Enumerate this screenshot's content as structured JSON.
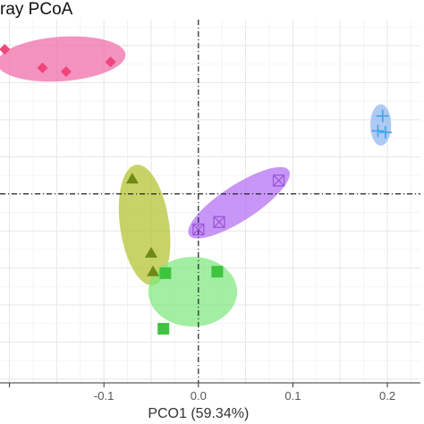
{
  "chart_data": {
    "type": "scatter",
    "title": "ray PCoA",
    "xlabel": "PCO1 (59.34%)",
    "ylabel": "",
    "xlim": [
      -0.21,
      0.235
    ],
    "ylim": [
      -0.255,
      0.235
    ],
    "x_ticks": [
      -0.2,
      -0.1,
      0.0,
      0.1,
      0.2
    ],
    "x_tick_labels": [
      "",
      "-0.1",
      "0.0",
      "0.1",
      "0.2"
    ],
    "grid": true,
    "reference_lines": {
      "x": 0,
      "y": 0,
      "style": "dashed"
    },
    "groups": [
      {
        "shape": "diamond",
        "point_color": "#f0457a",
        "ellipse_color": "#f06aa6",
        "points": [
          [
            -0.205,
            0.195
          ],
          [
            -0.165,
            0.17
          ],
          [
            -0.14,
            0.165
          ],
          [
            -0.093,
            0.178
          ]
        ],
        "ellipse": {
          "cx": -0.145,
          "cy": 0.182,
          "rx": 0.068,
          "ry": 0.03,
          "angle": -4
        }
      },
      {
        "shape": "plus",
        "point_color": "#3fa5e6",
        "ellipse_color": "#8db5ee",
        "points": [
          [
            0.195,
            0.105
          ],
          [
            0.19,
            0.085
          ],
          [
            0.198,
            0.083
          ]
        ],
        "ellipse": {
          "cx": 0.193,
          "cy": 0.093,
          "rx": 0.011,
          "ry": 0.028,
          "angle": 0
        }
      },
      {
        "shape": "triangle",
        "point_color": "#6e8a14",
        "ellipse_color": "#b3c22c",
        "points": [
          [
            -0.07,
            0.02
          ],
          [
            -0.05,
            -0.08
          ],
          [
            -0.048,
            -0.105
          ]
        ],
        "ellipse": {
          "cx": -0.057,
          "cy": -0.042,
          "rx": 0.026,
          "ry": 0.082,
          "angle": -8
        }
      },
      {
        "shape": "square-x",
        "point_color": "#9b58d8",
        "ellipse_color": "#b26ef2",
        "points": [
          [
            0.085,
            0.018
          ],
          [
            0.022,
            -0.038
          ],
          [
            0.0,
            -0.048
          ]
        ],
        "ellipse": {
          "cx": 0.043,
          "cy": -0.012,
          "rx": 0.063,
          "ry": 0.024,
          "angle": -33
        }
      },
      {
        "shape": "square",
        "point_color": "#3fc43f",
        "ellipse_color": "#7ee87e",
        "points": [
          [
            -0.035,
            -0.107
          ],
          [
            0.02,
            -0.105
          ],
          [
            -0.037,
            -0.182
          ]
        ],
        "ellipse": {
          "cx": -0.006,
          "cy": -0.132,
          "rx": 0.047,
          "ry": 0.047,
          "angle": 0
        }
      }
    ]
  }
}
